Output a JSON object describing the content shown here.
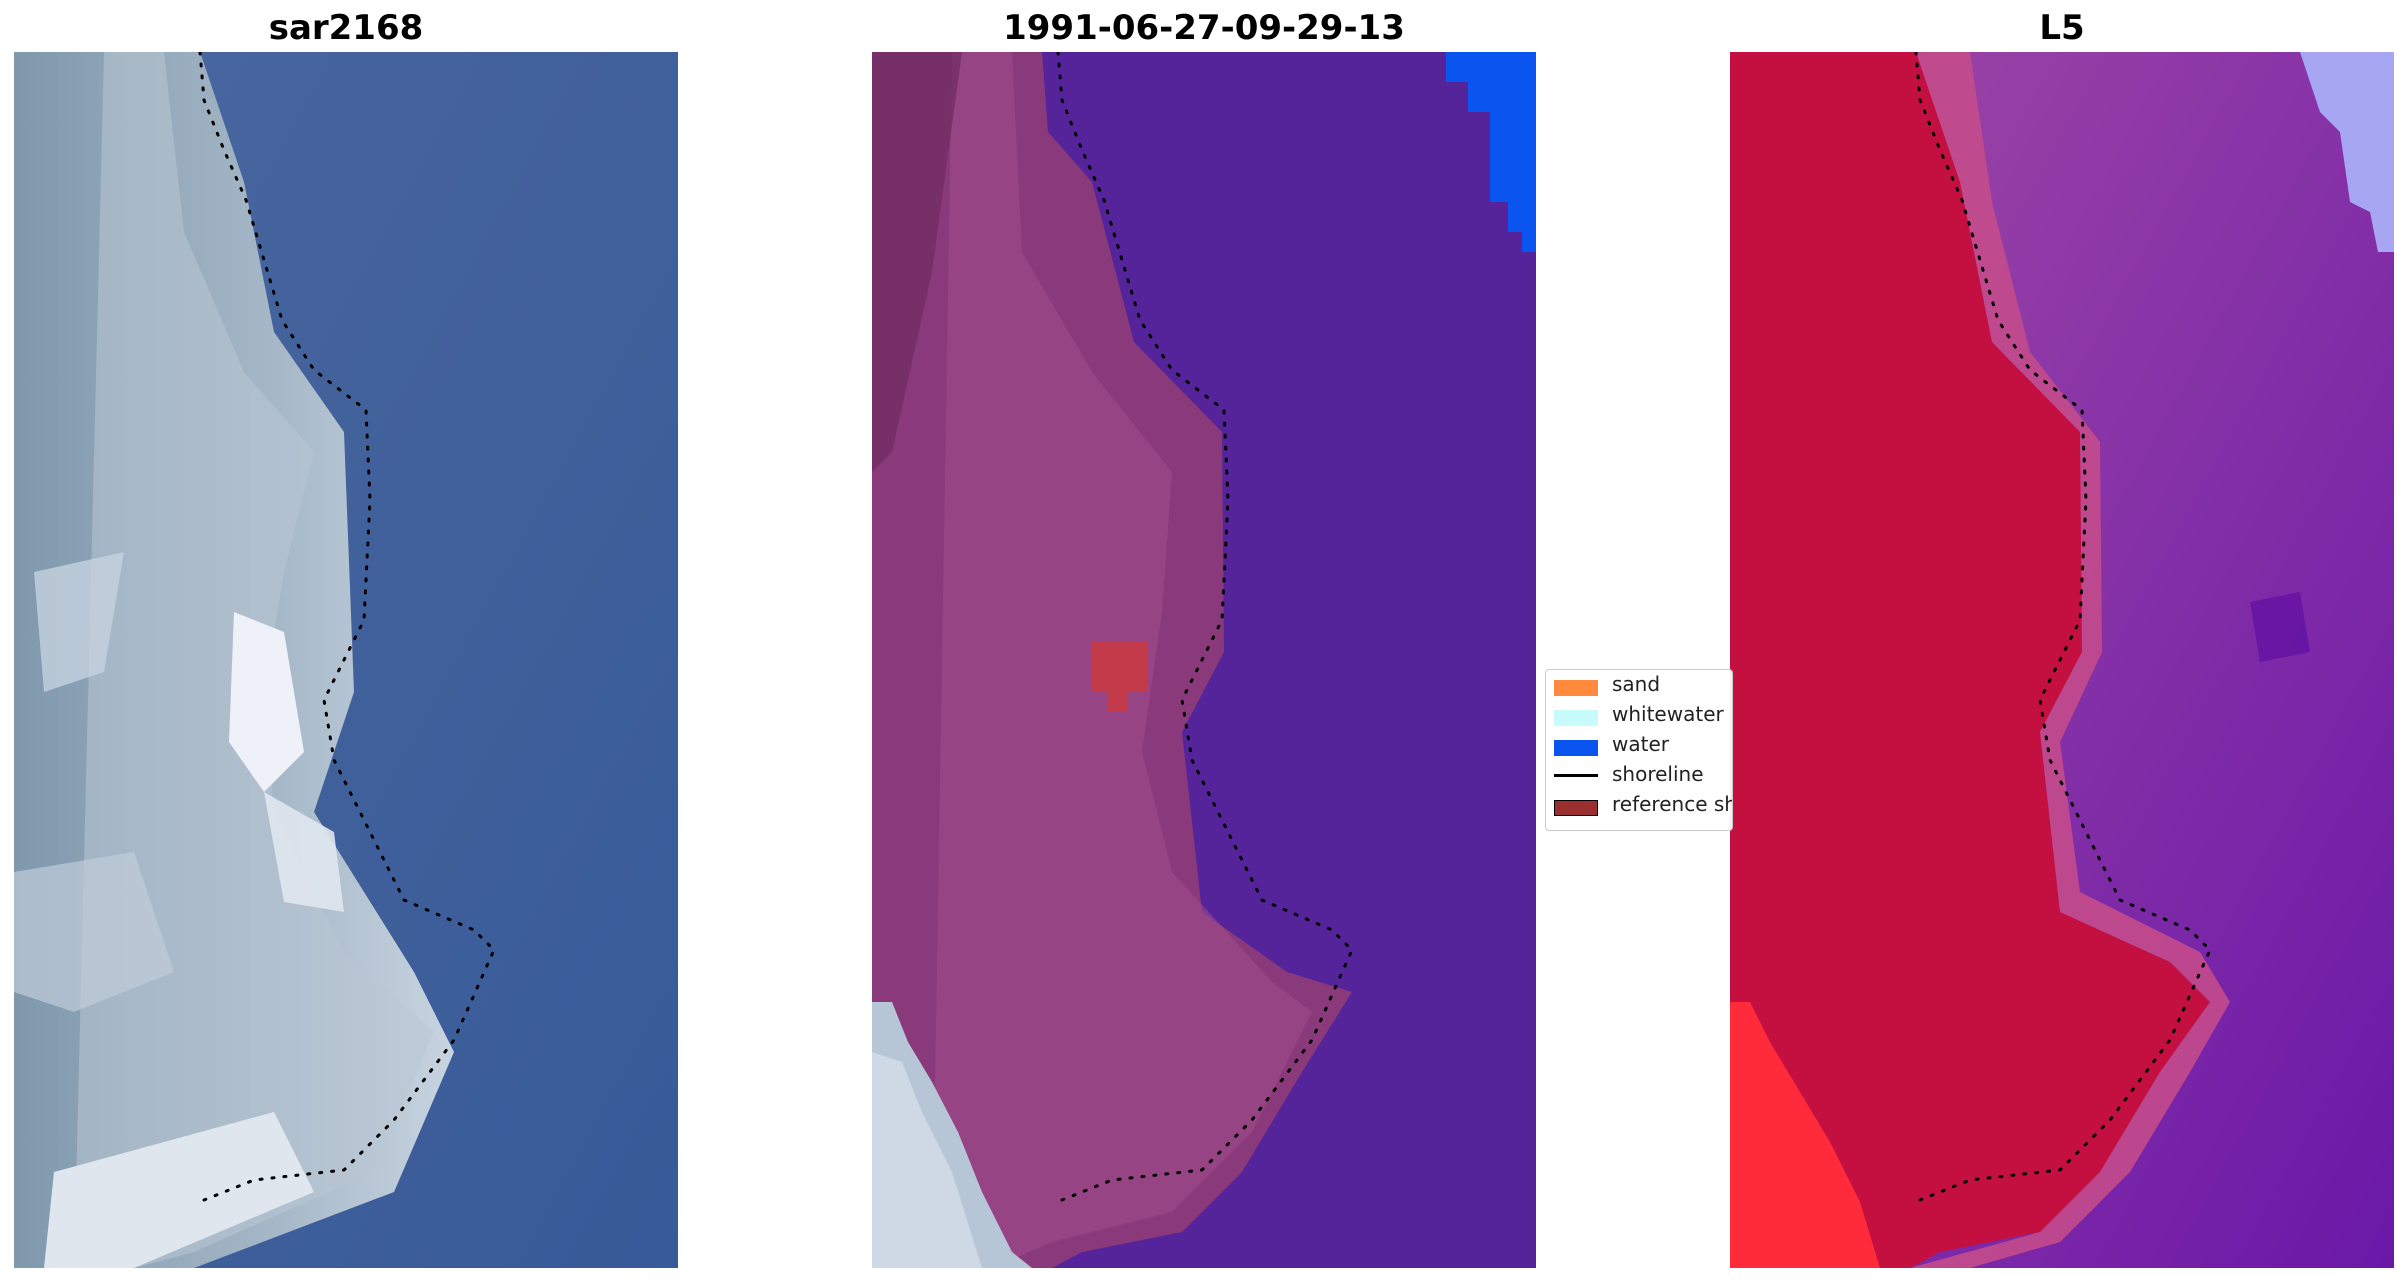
{
  "panels": [
    {
      "title": "sar2168"
    },
    {
      "title": "1991-06-27-09-29-13"
    },
    {
      "title": "L5"
    }
  ],
  "legend": {
    "items": [
      {
        "label": "sand",
        "color": "#ff8a3c"
      },
      {
        "label": "whitewater",
        "color": "#c8fbfb"
      },
      {
        "label": "water",
        "color": "#0a55f0"
      },
      {
        "label": "shoreline",
        "color": "#000000",
        "style": "line"
      },
      {
        "label": "reference shoreline buffer",
        "color": "#9b2f2f"
      }
    ]
  },
  "colors": {
    "ocean_rgb": "#3e5f9c",
    "land_rgb": "#8ba2b6",
    "ocean_class": "#55249a",
    "land_class": "#8a3a7a",
    "ocean_l5": "#8a3aa8",
    "land_l5": "#c41040"
  }
}
